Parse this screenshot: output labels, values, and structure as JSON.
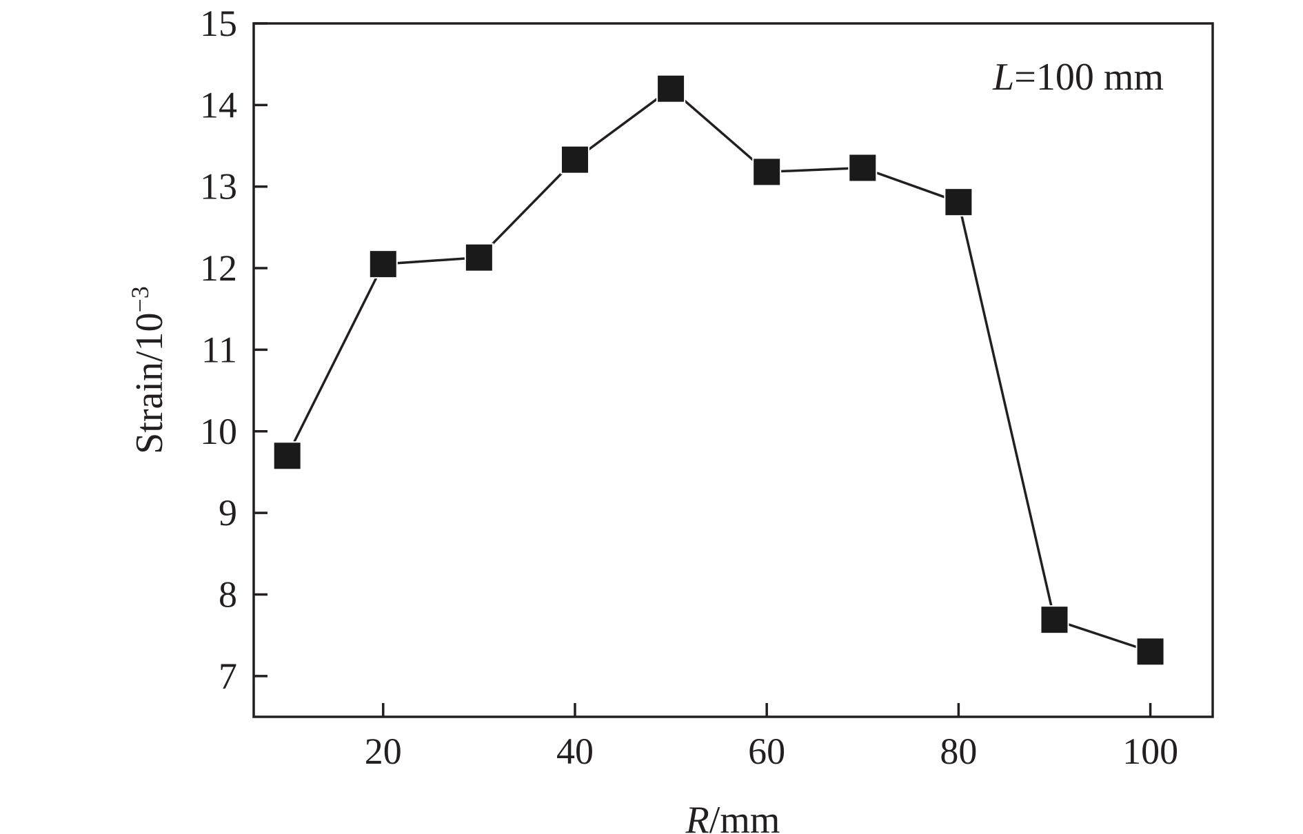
{
  "chart_data": {
    "type": "line",
    "title": "",
    "xlabel": {
      "symbol": "R",
      "unit": "/mm"
    },
    "ylabel": {
      "base": "Strain/10",
      "exponent": "−3"
    },
    "annotation": {
      "symbol": "L",
      "text": "=100 mm"
    },
    "xlim": [
      6.5,
      106.5
    ],
    "ylim": [
      6.5,
      15
    ],
    "x_ticks": [
      20,
      40,
      60,
      80,
      100
    ],
    "x_tick_labels": [
      "20",
      "40",
      "60",
      "80",
      "100"
    ],
    "y_ticks": [
      7,
      8,
      9,
      10,
      11,
      12,
      13,
      14,
      15
    ],
    "y_tick_labels": [
      "7",
      "8",
      "9",
      "10",
      "11",
      "12",
      "13",
      "14",
      "15"
    ],
    "grid": false,
    "series": [
      {
        "marker": "square",
        "color": "#1a1a1a",
        "x": [
          10,
          20,
          30,
          40,
          50,
          60,
          70,
          80,
          90,
          100
        ],
        "y": [
          9.7,
          12.05,
          12.13,
          13.33,
          14.2,
          13.18,
          13.23,
          12.81,
          7.69,
          7.3
        ]
      }
    ]
  }
}
